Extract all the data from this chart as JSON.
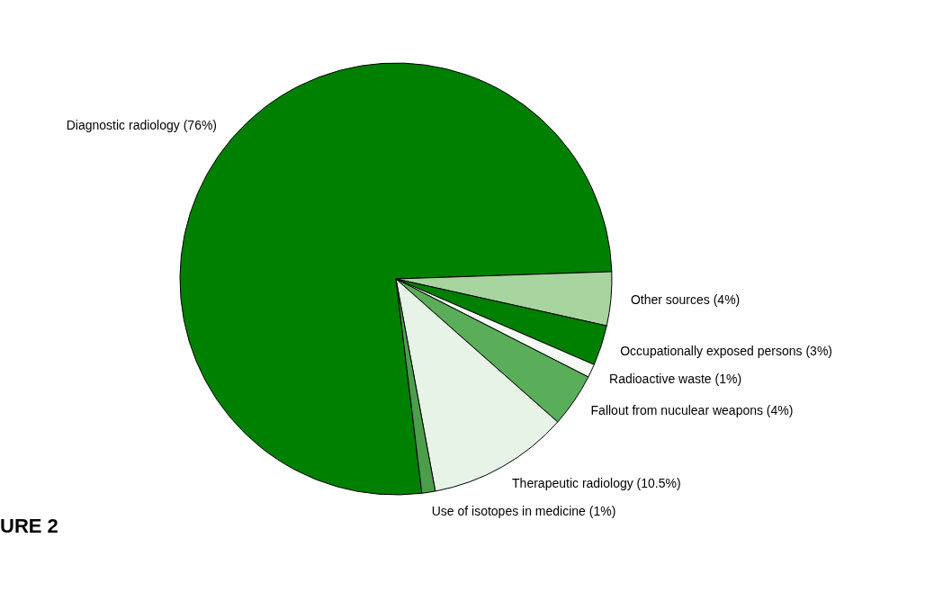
{
  "chart_data": {
    "type": "pie",
    "categories": [
      "Diagnostic radiology",
      "Other sources",
      "Occupationally exposed persons",
      "Radioactive waste",
      "Fallout from nuculear weapons",
      "Therapeutic radiology",
      "Use of isotopes in medicine"
    ],
    "values": [
      76,
      4,
      3,
      1,
      4,
      10.5,
      1
    ],
    "value_labels": [
      "(76%)",
      "(4%)",
      "(3%)",
      "(1%)",
      "(4%)",
      "(10.5%)",
      "(1%)"
    ],
    "colors": [
      "#008000",
      "#a8d4a0",
      "#008000",
      "#f4faf4",
      "#5aae5a",
      "#e6f3e6",
      "#4c9e4c"
    ],
    "annotations": [
      "URE 2"
    ]
  }
}
